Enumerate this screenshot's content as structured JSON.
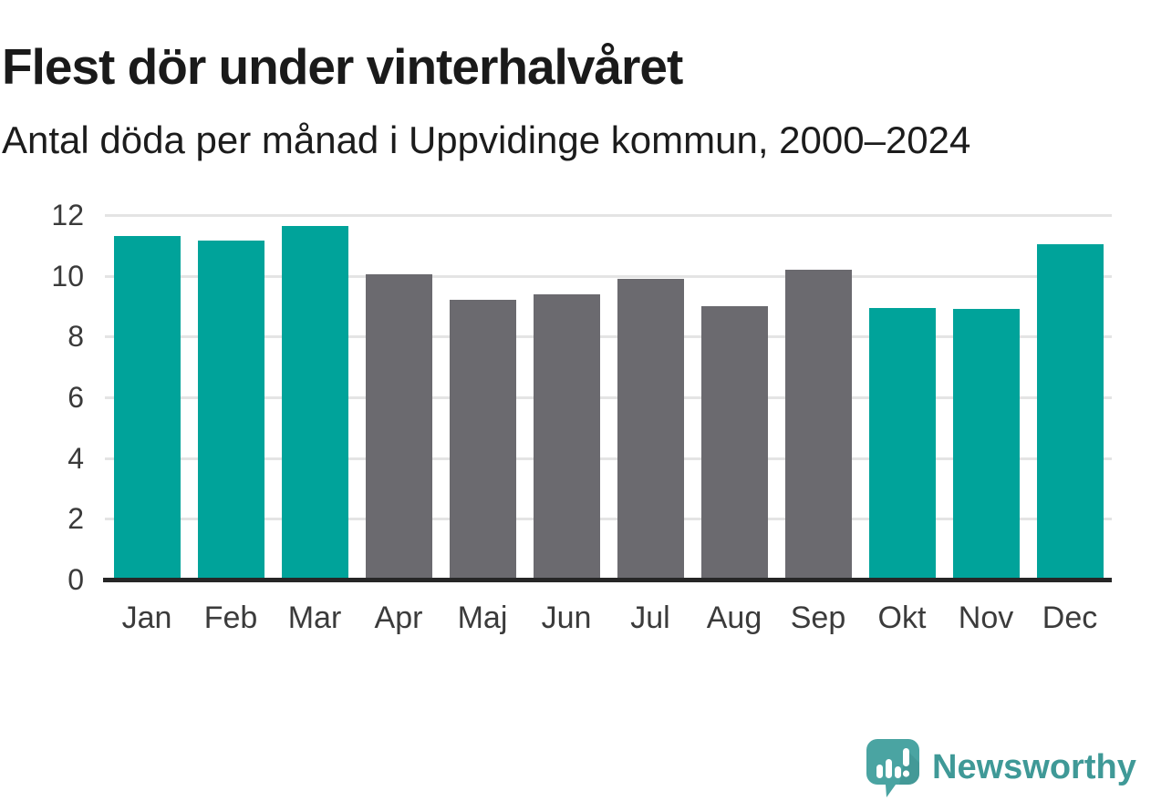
{
  "header": {
    "title": "Flest dör under vinterhalvåret",
    "subtitle": "Antal döda per månad i Uppvidinge kommun, 2000–2024"
  },
  "chart_data": {
    "type": "bar",
    "title": "Flest dör under vinterhalvåret",
    "subtitle": "Antal döda per månad i Uppvidinge kommun, 2000–2024",
    "categories": [
      "Jan",
      "Feb",
      "Mar",
      "Apr",
      "Maj",
      "Jun",
      "Jul",
      "Aug",
      "Sep",
      "Okt",
      "Nov",
      "Dec"
    ],
    "values": [
      11.3,
      11.15,
      11.65,
      10.05,
      9.2,
      9.4,
      9.9,
      9.0,
      10.2,
      8.95,
      8.9,
      11.05
    ],
    "groups": [
      "winter",
      "winter",
      "winter",
      "summer",
      "summer",
      "summer",
      "summer",
      "summer",
      "summer",
      "winter",
      "winter",
      "winter"
    ],
    "colors": {
      "winter": "#00A39A",
      "summer": "#6B6A6F"
    },
    "xlabel": "",
    "ylabel": "",
    "ylim": [
      0,
      12
    ],
    "yticks": [
      0,
      2,
      4,
      6,
      8,
      10,
      12
    ],
    "grid": "horizontal",
    "legend": "none",
    "axis_color": "#262626",
    "gridline_color": "#e4e4e4"
  },
  "footer": {
    "brand": "Newsworthy",
    "logo_icon": "newsworthy-speech-bubble-chart-icon",
    "brand_color": "#3F9997",
    "logo_bubble_color": "#4AA4A2",
    "logo_bubble_shade_color": "#3E8F8E"
  }
}
